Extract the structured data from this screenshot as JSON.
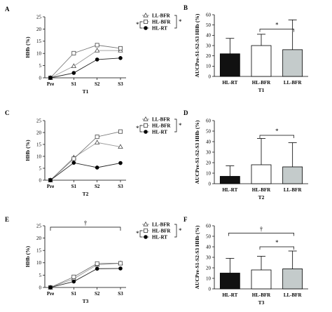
{
  "chart_data": [
    {
      "panel": "A",
      "type": "line",
      "categories": [
        "Pre",
        "S1",
        "S2",
        "S3"
      ],
      "xlabel": "T1",
      "ylabel": "HHb (%)",
      "ylim": [
        0,
        25
      ],
      "yticks": [
        "0",
        "5",
        "10",
        "15",
        "20",
        "25"
      ],
      "legend_position": "top-right",
      "series": [
        {
          "name": "LL-BFR",
          "marker": "triangle",
          "values": [
            0,
            4.8,
            11.2,
            11.2
          ]
        },
        {
          "name": "HL-BFR",
          "marker": "square",
          "values": [
            0,
            10.1,
            13.4,
            12.1
          ]
        },
        {
          "name": "HL-RT",
          "marker": "circle",
          "values": [
            0,
            2.0,
            7.5,
            8.1
          ]
        }
      ],
      "annotations": [
        "*",
        "*"
      ]
    },
    {
      "panel": "B",
      "type": "bar",
      "categories": [
        "HL-RT",
        "HL-BFR",
        "LL-BFR"
      ],
      "xlabel": "T1",
      "ylabel": "AUCPre-S1-S2-S3 HHb (%)",
      "ylim": [
        0,
        60
      ],
      "yticks": [
        "0",
        "10",
        "20",
        "30",
        "40",
        "50",
        "60"
      ],
      "values": [
        22,
        30,
        26
      ],
      "errors": [
        15,
        11,
        29
      ],
      "fill_colors": [
        "#111111",
        "#ffffff",
        "#c4cbcb"
      ],
      "annotations": [
        "*"
      ]
    },
    {
      "panel": "C",
      "type": "line",
      "categories": [
        "Pre",
        "S1",
        "S2",
        "S3"
      ],
      "xlabel": "T2",
      "ylabel": "HHb (%)",
      "ylim": [
        0,
        25
      ],
      "yticks": [
        "0",
        "5",
        "10",
        "15",
        "20",
        "25"
      ],
      "legend_position": "top-right",
      "series": [
        {
          "name": "LL-BFR",
          "marker": "triangle",
          "values": [
            0,
            9.5,
            15.8,
            14.0
          ]
        },
        {
          "name": "HL-BFR",
          "marker": "square",
          "values": [
            0,
            9.0,
            18.2,
            20.4
          ]
        },
        {
          "name": "HL-RT",
          "marker": "circle",
          "values": [
            0,
            7.3,
            5.3,
            7.2
          ]
        }
      ],
      "annotations": [
        "*",
        "*"
      ]
    },
    {
      "panel": "D",
      "type": "bar",
      "categories": [
        "HL-RT",
        "HL-BFR",
        "LL-BFR"
      ],
      "xlabel": "T2",
      "ylabel": "AUCPre-S1-S2-S3 HHb (%)",
      "ylim": [
        0,
        60
      ],
      "yticks": [
        "0",
        "10",
        "20",
        "30",
        "40",
        "50",
        "60"
      ],
      "values": [
        7,
        18,
        16
      ],
      "errors": [
        10,
        25,
        23
      ],
      "fill_colors": [
        "#111111",
        "#ffffff",
        "#c4cbcb"
      ],
      "annotations": [
        "*"
      ]
    },
    {
      "panel": "E",
      "type": "line",
      "categories": [
        "Pre",
        "S1",
        "S2",
        "S3"
      ],
      "xlabel": "T3",
      "ylabel": "HHb (%)",
      "ylim": [
        0,
        25
      ],
      "yticks": [
        "0",
        "5",
        "10",
        "15",
        "20",
        "25"
      ],
      "legend_position": "top-right",
      "series": [
        {
          "name": "LL-BFR",
          "marker": "triangle",
          "values": [
            0,
            3.5,
            9.2,
            9.8
          ]
        },
        {
          "name": "HL-BFR",
          "marker": "square",
          "values": [
            0,
            4.3,
            9.7,
            9.8
          ]
        },
        {
          "name": "HL-RT",
          "marker": "circle",
          "values": [
            0,
            2.4,
            7.6,
            7.7
          ]
        }
      ],
      "annotations": [
        "†",
        "*",
        "*"
      ]
    },
    {
      "panel": "F",
      "type": "bar",
      "categories": [
        "HL-RT",
        "HL-BFR",
        "LL-BFR"
      ],
      "xlabel": "T3",
      "ylabel": "AUCPre-S1-S2-S3 HHb (%)",
      "ylim": [
        0,
        60
      ],
      "yticks": [
        "0",
        "10",
        "20",
        "30",
        "40",
        "50",
        "60"
      ],
      "values": [
        15,
        18,
        19
      ],
      "errors": [
        14,
        13,
        17
      ],
      "fill_colors": [
        "#111111",
        "#ffffff",
        "#c4cbcb"
      ],
      "annotations": [
        "†",
        "*"
      ]
    }
  ]
}
